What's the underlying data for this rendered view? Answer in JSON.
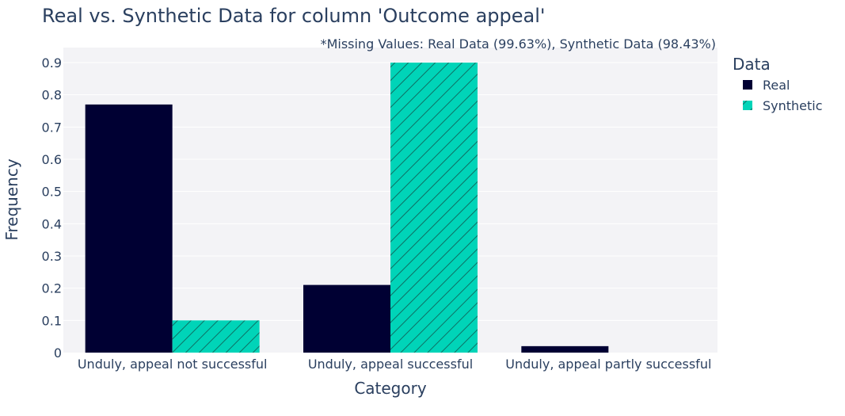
{
  "chart_data": {
    "type": "bar",
    "title": "Real vs. Synthetic Data for column 'Outcome appeal'",
    "subtitle": "*Missing Values: Real Data (99.63%), Synthetic Data (98.43%)",
    "xlabel": "Category",
    "ylabel": "Frequency",
    "categories": [
      "Unduly, appeal not successful",
      "Unduly, appeal successful",
      "Unduly, appeal partly successful"
    ],
    "series": [
      {
        "name": "Real",
        "values": [
          0.77,
          0.21,
          0.02
        ],
        "color": "#000033",
        "pattern": "solid"
      },
      {
        "name": "Synthetic",
        "values": [
          0.1,
          0.9,
          0.0
        ],
        "color": "#00d4b8",
        "pattern": "diagonal-hatch"
      }
    ],
    "ylim": [
      0,
      0.9
    ],
    "yticks": [
      0,
      0.1,
      0.2,
      0.3,
      0.4,
      0.5,
      0.6,
      0.7,
      0.8,
      0.9
    ],
    "grid": true,
    "legend": {
      "title": "Data",
      "position": "top-right"
    }
  }
}
